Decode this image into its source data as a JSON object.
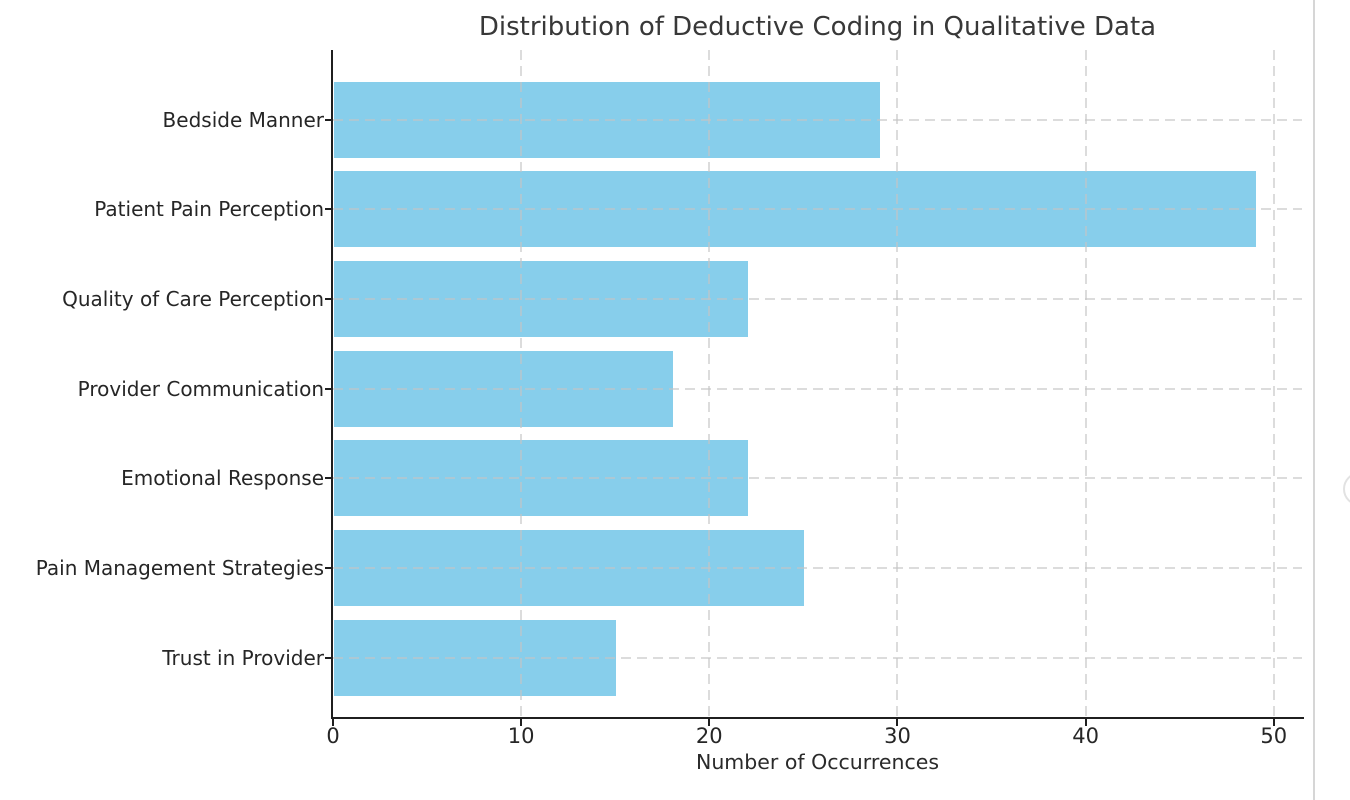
{
  "chart_data": {
    "type": "bar",
    "orientation": "horizontal",
    "title": "Distribution of Deductive Coding in Qualitative Data",
    "xlabel": "Number of Occurrences",
    "ylabel": "",
    "categories": [
      "Bedside Manner",
      "Patient Pain Perception",
      "Quality of Care Perception",
      "Provider Communication",
      "Emotional Response",
      "Pain Management Strategies",
      "Trust in Provider"
    ],
    "values": [
      29,
      49,
      22,
      18,
      22,
      25,
      15
    ],
    "xticks": [
      0,
      10,
      20,
      30,
      40,
      50
    ],
    "xlim": [
      0,
      51.5
    ],
    "bar_color": "#87CEEB",
    "grid": {
      "visible": true,
      "style": "dashed",
      "color": "#c4c4c4",
      "drawn_over_bars": true
    },
    "legend_position": "none",
    "axis_color": "#1f1f1f"
  },
  "page": {
    "background": "#ffffff",
    "right_border_color": "#d6d6d6"
  }
}
